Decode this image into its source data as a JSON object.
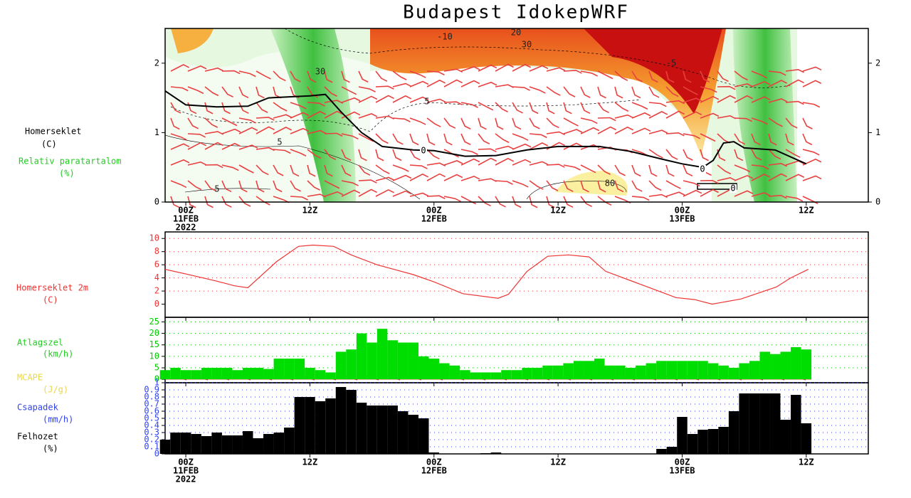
{
  "chart_data": [
    {
      "type": "contour",
      "title": "Budapest IdokepWRF",
      "axis_labels": [
        {
          "text": "Homerseklet",
          "color": "#000000"
        },
        {
          "text": "(C)",
          "color": "#000000"
        },
        {
          "text": "Relativ paratartalom",
          "color": "#22cc22"
        },
        {
          "text": "(%)",
          "color": "#22cc22"
        }
      ],
      "xlim": [
        -2,
        66
      ],
      "xticks": [
        {
          "value": 0,
          "label": [
            "00Z",
            "11FEB",
            "2022"
          ]
        },
        {
          "value": 12,
          "label": [
            "12Z"
          ]
        },
        {
          "value": 24,
          "label": [
            "00Z",
            "12FEB"
          ]
        },
        {
          "value": 36,
          "label": [
            "12Z"
          ]
        },
        {
          "value": 48,
          "label": [
            "00Z",
            "13FEB"
          ]
        },
        {
          "value": 60,
          "label": [
            "12Z"
          ]
        }
      ],
      "ylim": [
        0,
        2.5
      ],
      "yticks": [
        0,
        1,
        2
      ],
      "series": [
        {
          "name": "0",
          "color": "#000000",
          "x": [
            -2,
            0,
            3,
            6,
            8,
            12,
            13.5,
            15,
            17,
            19,
            22,
            24,
            27,
            30,
            33,
            36,
            40,
            43,
            46,
            48,
            50,
            51,
            52,
            53,
            54,
            57,
            60
          ],
          "values": [
            1.6,
            1.4,
            1.37,
            1.38,
            1.5,
            1.53,
            1.55,
            1.3,
            1.0,
            0.8,
            0.75,
            0.74,
            0.66,
            0.67,
            0.75,
            0.8,
            0.8,
            0.73,
            0.62,
            0.55,
            0.5,
            0.6,
            0.85,
            0.87,
            0.78,
            0.75,
            0.55
          ]
        }
      ],
      "contour_labels": [
        "-10",
        "20",
        "30",
        "30",
        "-5",
        "5",
        "5",
        "5",
        "80"
      ]
    },
    {
      "type": "line",
      "axis_labels": [
        {
          "text": "Homerseklet 2m",
          "color": "#ee3333"
        },
        {
          "text": "(C)",
          "color": "#ee3333"
        }
      ],
      "xlim": [
        -2,
        66
      ],
      "xticks": [
        0,
        12,
        24,
        36,
        48,
        60
      ],
      "ylim": [
        -2,
        11
      ],
      "yticks": [
        0,
        2,
        4,
        6,
        8,
        10
      ],
      "grid": true,
      "tick_color": "#ee3333",
      "series": [
        {
          "color": "#ee3333",
          "x": [
            -2,
            0,
            3,
            4.7,
            6,
            8.8,
            10.9,
            12.3,
            14.3,
            16,
            18.5,
            22,
            24,
            26.8,
            30.2,
            31.2,
            33,
            35,
            37,
            39,
            40.6,
            44,
            47.4,
            49.2,
            50.9,
            53.7,
            57.1,
            58.5,
            60.2
          ],
          "values": [
            5.3,
            4.6,
            3.5,
            2.8,
            2.5,
            6.5,
            8.8,
            9.0,
            8.8,
            7.5,
            6,
            4.5,
            3.4,
            1.6,
            0.9,
            1.5,
            5,
            7.3,
            7.5,
            7.2,
            5,
            3,
            1,
            0.7,
            0,
            0.8,
            2.6,
            4,
            5.3
          ]
        }
      ]
    },
    {
      "type": "bar",
      "axis_labels": [
        {
          "text": "Atlagszel",
          "color": "#22cc22"
        },
        {
          "text": "(km/h)",
          "color": "#22cc22"
        },
        {
          "text": "MCAPE",
          "color": "#e8d84a"
        },
        {
          "text": "(J/g)",
          "color": "#e8d84a"
        }
      ],
      "xlim": [
        -2,
        66
      ],
      "xticks": [
        0,
        12,
        24,
        36,
        48,
        60
      ],
      "ylim": [
        -1.5,
        27
      ],
      "yticks": [
        0,
        5,
        10,
        15,
        20,
        25
      ],
      "grid": true,
      "tick_color": "#00cc00",
      "series": [
        {
          "color": "#00dd00",
          "x": [
            -2,
            -1,
            0,
            1,
            2,
            3,
            4,
            5,
            6,
            7,
            8,
            9,
            10,
            11,
            12,
            13,
            14,
            15,
            16,
            17,
            18,
            19,
            20,
            21,
            22,
            23,
            24,
            25,
            26,
            27,
            28,
            29,
            30,
            31,
            32,
            33,
            34,
            35,
            36,
            37,
            38,
            39,
            40,
            41,
            42,
            43,
            44,
            45,
            46,
            47,
            48,
            49,
            50,
            51,
            52,
            53,
            54,
            55,
            56,
            57,
            58,
            59,
            60,
            61
          ],
          "values": [
            4,
            5,
            4,
            4,
            5,
            5,
            5,
            4,
            5,
            5,
            4.5,
            9,
            9,
            9,
            5,
            4,
            3,
            12,
            13,
            20,
            16,
            22,
            17,
            16,
            16,
            10,
            9,
            7,
            6,
            4,
            3,
            3,
            3,
            4,
            4,
            5,
            5,
            6,
            6,
            7,
            8,
            8,
            9,
            6,
            6,
            5,
            6,
            7,
            8,
            8,
            8,
            8,
            8,
            7,
            6,
            5,
            7,
            8,
            12,
            11,
            12,
            14,
            13,
            0
          ]
        }
      ]
    },
    {
      "type": "bar",
      "axis_labels": [
        {
          "text": "Csapadek",
          "color": "#3344ee"
        },
        {
          "text": "(mm/h)",
          "color": "#3344ee"
        },
        {
          "text": "Felhozet",
          "color": "#000000"
        },
        {
          "text": "(%)",
          "color": "#000000"
        }
      ],
      "xlim": [
        -2,
        66
      ],
      "xticks": [
        {
          "value": 0,
          "label": [
            "00Z",
            "11FEB",
            "2022"
          ]
        },
        {
          "value": 12,
          "label": [
            "12Z"
          ]
        },
        {
          "value": 24,
          "label": [
            "00Z",
            "12FEB"
          ]
        },
        {
          "value": 36,
          "label": [
            "12Z"
          ]
        },
        {
          "value": 48,
          "label": [
            "00Z",
            "13FEB"
          ]
        },
        {
          "value": 60,
          "label": [
            "12Z"
          ]
        }
      ],
      "ylim": [
        0,
        1
      ],
      "yticks": [
        0,
        0.1,
        0.2,
        0.3,
        0.4,
        0.5,
        0.6,
        0.7,
        0.8,
        0.9,
        1
      ],
      "grid": true,
      "tick_color": "#3344ee",
      "series": [
        {
          "color": "#000000",
          "x": [
            -2,
            -1,
            0,
            1,
            2,
            3,
            4,
            5,
            6,
            7,
            8,
            9,
            10,
            11,
            12,
            13,
            14,
            15,
            16,
            17,
            18,
            19,
            20,
            21,
            22,
            23,
            24,
            25,
            26,
            27,
            28,
            29,
            30,
            31,
            32,
            33,
            34,
            35,
            36,
            37,
            38,
            39,
            40,
            41,
            42,
            43,
            44,
            45,
            46,
            47,
            48,
            49,
            50,
            51,
            52,
            53,
            54,
            55,
            56,
            57,
            58,
            59,
            60,
            61
          ],
          "values": [
            0.2,
            0.3,
            0.3,
            0.28,
            0.25,
            0.3,
            0.26,
            0.26,
            0.32,
            0.22,
            0.28,
            0.3,
            0.37,
            0.8,
            0.8,
            0.74,
            0.78,
            0.94,
            0.9,
            0.72,
            0.68,
            0.68,
            0.68,
            0.6,
            0.55,
            0.5,
            0.02,
            0,
            0,
            0,
            0,
            0.01,
            0.02,
            0,
            0,
            0,
            0,
            0,
            0,
            0,
            0,
            0,
            0,
            0,
            0,
            0,
            0,
            0,
            0.07,
            0.1,
            0.52,
            0.28,
            0.34,
            0.35,
            0.38,
            0.6,
            0.85,
            0.85,
            0.85,
            0.85,
            0.48,
            0.83,
            0.43,
            0
          ]
        }
      ]
    }
  ]
}
